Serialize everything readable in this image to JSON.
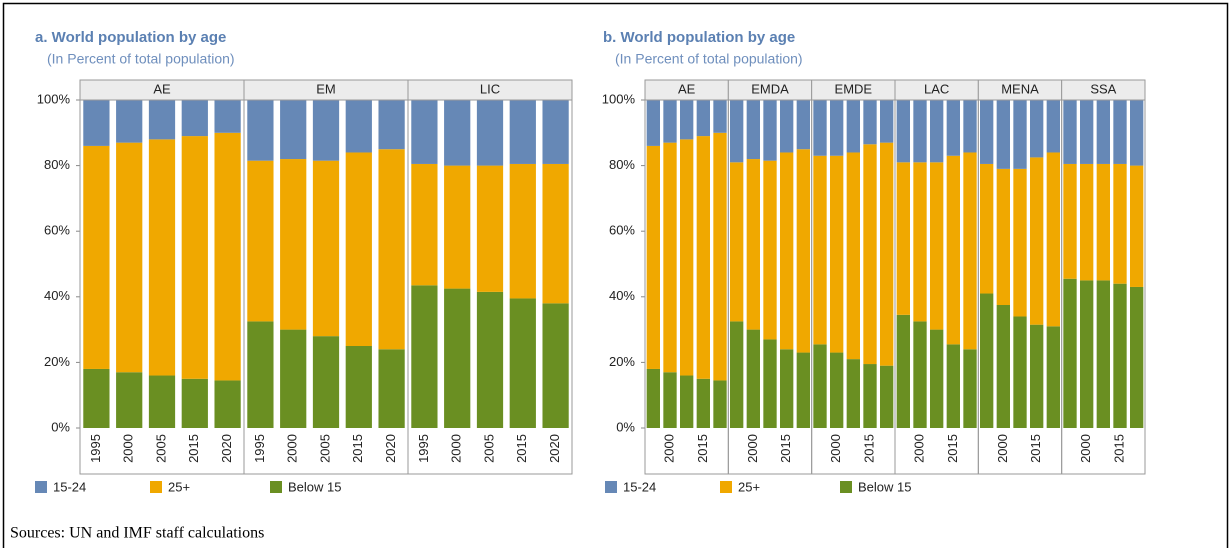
{
  "chart_data": [
    {
      "type": "bar",
      "stacked": true,
      "title": "a. World population by age",
      "subtitle": "(In Percent of total population)",
      "ylim": [
        0,
        100
      ],
      "yticks": [
        {
          "value": 0,
          "label": "0%"
        },
        {
          "value": 20,
          "label": "20%"
        },
        {
          "value": 40,
          "label": "40%"
        },
        {
          "value": 60,
          "label": "60%"
        },
        {
          "value": 80,
          "label": "80%"
        },
        {
          "value": 100,
          "label": "100%"
        }
      ],
      "facets": [
        {
          "name": "AE",
          "categories": [
            "1995",
            "2000",
            "2005",
            "2015",
            "2020"
          ]
        },
        {
          "name": "EM",
          "categories": [
            "1995",
            "2000",
            "2005",
            "2015",
            "2020"
          ]
        },
        {
          "name": "LIC",
          "categories": [
            "1995",
            "2000",
            "2005",
            "2015",
            "2020"
          ]
        }
      ],
      "series": [
        {
          "name": "15-24",
          "color": "#6688b6",
          "values": [
            [
              14,
              13,
              12,
              11,
              10
            ],
            [
              18.5,
              18,
              18.5,
              16,
              15
            ],
            [
              19.5,
              20,
              20,
              19.5,
              19.5
            ]
          ]
        },
        {
          "name": "25+",
          "color": "#f0a800",
          "values": [
            [
              68,
              70,
              72,
              74,
              75.5
            ],
            [
              49,
              52,
              53.5,
              59,
              61
            ],
            [
              37,
              37.5,
              38.5,
              41,
              42.5
            ]
          ]
        },
        {
          "name": "Below 15",
          "color": "#6a8f22",
          "values": [
            [
              18,
              17,
              16,
              15,
              14.5
            ],
            [
              32.5,
              30,
              28,
              25,
              24
            ],
            [
              43.5,
              42.5,
              41.5,
              39.5,
              38
            ]
          ]
        }
      ]
    },
    {
      "type": "bar",
      "stacked": true,
      "title": "b. World population by age",
      "subtitle": "(In Percent of total population)",
      "ylim": [
        0,
        100
      ],
      "yticks": [
        {
          "value": 0,
          "label": "0%"
        },
        {
          "value": 20,
          "label": "20%"
        },
        {
          "value": 40,
          "label": "40%"
        },
        {
          "value": 60,
          "label": "60%"
        },
        {
          "value": 80,
          "label": "80%"
        },
        {
          "value": 100,
          "label": "100%"
        }
      ],
      "facets": [
        {
          "name": "AE",
          "categories": [
            null,
            "2000",
            null,
            "2015",
            null
          ]
        },
        {
          "name": "EMDA",
          "categories": [
            null,
            "2000",
            null,
            "2015",
            null
          ]
        },
        {
          "name": "EMDE",
          "categories": [
            null,
            "2000",
            null,
            "2015",
            null
          ]
        },
        {
          "name": "LAC",
          "categories": [
            null,
            "2000",
            null,
            "2015",
            null
          ]
        },
        {
          "name": "MENA",
          "categories": [
            null,
            "2000",
            null,
            "2015",
            null
          ]
        },
        {
          "name": "SSA",
          "categories": [
            null,
            "2000",
            null,
            "2015",
            null
          ]
        }
      ],
      "series": [
        {
          "name": "15-24",
          "color": "#6688b6",
          "values": [
            [
              14,
              13,
              12,
              11,
              10
            ],
            [
              19,
              18,
              18.5,
              16,
              15
            ],
            [
              17,
              17,
              16,
              13.5,
              13
            ],
            [
              19,
              19,
              19,
              17,
              16
            ],
            [
              19.5,
              21,
              21,
              17.5,
              16
            ],
            [
              19.5,
              19.5,
              19.5,
              19.5,
              20
            ]
          ]
        },
        {
          "name": "25+",
          "color": "#f0a800",
          "values": [
            [
              68,
              70,
              72,
              74,
              75.5
            ],
            [
              48.5,
              52,
              54.5,
              60,
              62
            ],
            [
              57.5,
              60,
              63,
              67,
              68
            ],
            [
              46.5,
              48.5,
              51,
              57.5,
              60
            ],
            [
              39.5,
              41.5,
              45,
              51,
              53
            ],
            [
              35,
              35.5,
              35.5,
              36.5,
              37
            ]
          ]
        },
        {
          "name": "Below 15",
          "color": "#6a8f22",
          "values": [
            [
              18,
              17,
              16,
              15,
              14.5
            ],
            [
              32.5,
              30,
              27,
              24,
              23
            ],
            [
              25.5,
              23,
              21,
              19.5,
              19
            ],
            [
              34.5,
              32.5,
              30,
              25.5,
              24
            ],
            [
              41,
              37.5,
              34,
              31.5,
              31
            ],
            [
              45.5,
              45,
              45,
              44,
              43
            ]
          ]
        }
      ]
    }
  ],
  "source": "Sources: UN and IMF staff calculations"
}
